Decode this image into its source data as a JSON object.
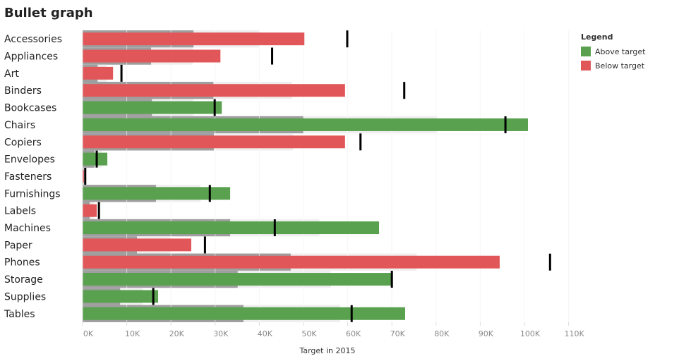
{
  "chart_data": {
    "type": "bar",
    "subtype": "bullet",
    "title": "Bullet graph",
    "xlabel": "Target in 2015",
    "ylabel": "",
    "xlim": [
      0,
      112
    ],
    "x_unit": "K",
    "x_ticks": [
      "0K",
      "10K",
      "20K",
      "30K",
      "40K",
      "50K",
      "60K",
      "70K",
      "80K",
      "90K",
      "100K",
      "110K"
    ],
    "grid": true,
    "legend": {
      "title": "Legend",
      "placement": "top-right",
      "items": [
        {
          "label": "Above target",
          "color": "#59a14f"
        },
        {
          "label": "Below target",
          "color": "#e15759"
        }
      ]
    },
    "band_colors": {
      "dark": "#9e9e9e",
      "light": "#eeeeee"
    },
    "categories": [
      "Accessories",
      "Appliances",
      "Art",
      "Binders",
      "Bookcases",
      "Chairs",
      "Copiers",
      "Envelopes",
      "Fasteners",
      "Furnishings",
      "Labels",
      "Machines",
      "Paper",
      "Phones",
      "Storage",
      "Supplies",
      "Tables"
    ],
    "sales": [
      50.2,
      31.2,
      6.9,
      59.4,
      31.5,
      100.8,
      59.4,
      5.6,
      0.3,
      33.4,
      3.2,
      67.1,
      24.6,
      94.4,
      70.0,
      17.1,
      73.0
    ],
    "target": [
      59.9,
      42.9,
      8.8,
      72.8,
      29.9,
      95.7,
      62.9,
      3.2,
      0.6,
      28.8,
      3.7,
      43.5,
      27.7,
      105.8,
      70.0,
      16.0,
      60.9
    ],
    "band_dark": [
      25.1,
      15.5,
      3.4,
      29.6,
      15.7,
      50.0,
      29.7,
      2.7,
      0.2,
      16.6,
      1.6,
      33.4,
      12.3,
      47.1,
      35.1,
      8.5,
      36.4
    ],
    "band_light": [
      40.0,
      24.9,
      5.5,
      47.4,
      25.0,
      80.3,
      47.6,
      4.3,
      0.4,
      26.7,
      2.5,
      53.6,
      19.8,
      75.6,
      56.2,
      13.6,
      58.3
    ]
  }
}
